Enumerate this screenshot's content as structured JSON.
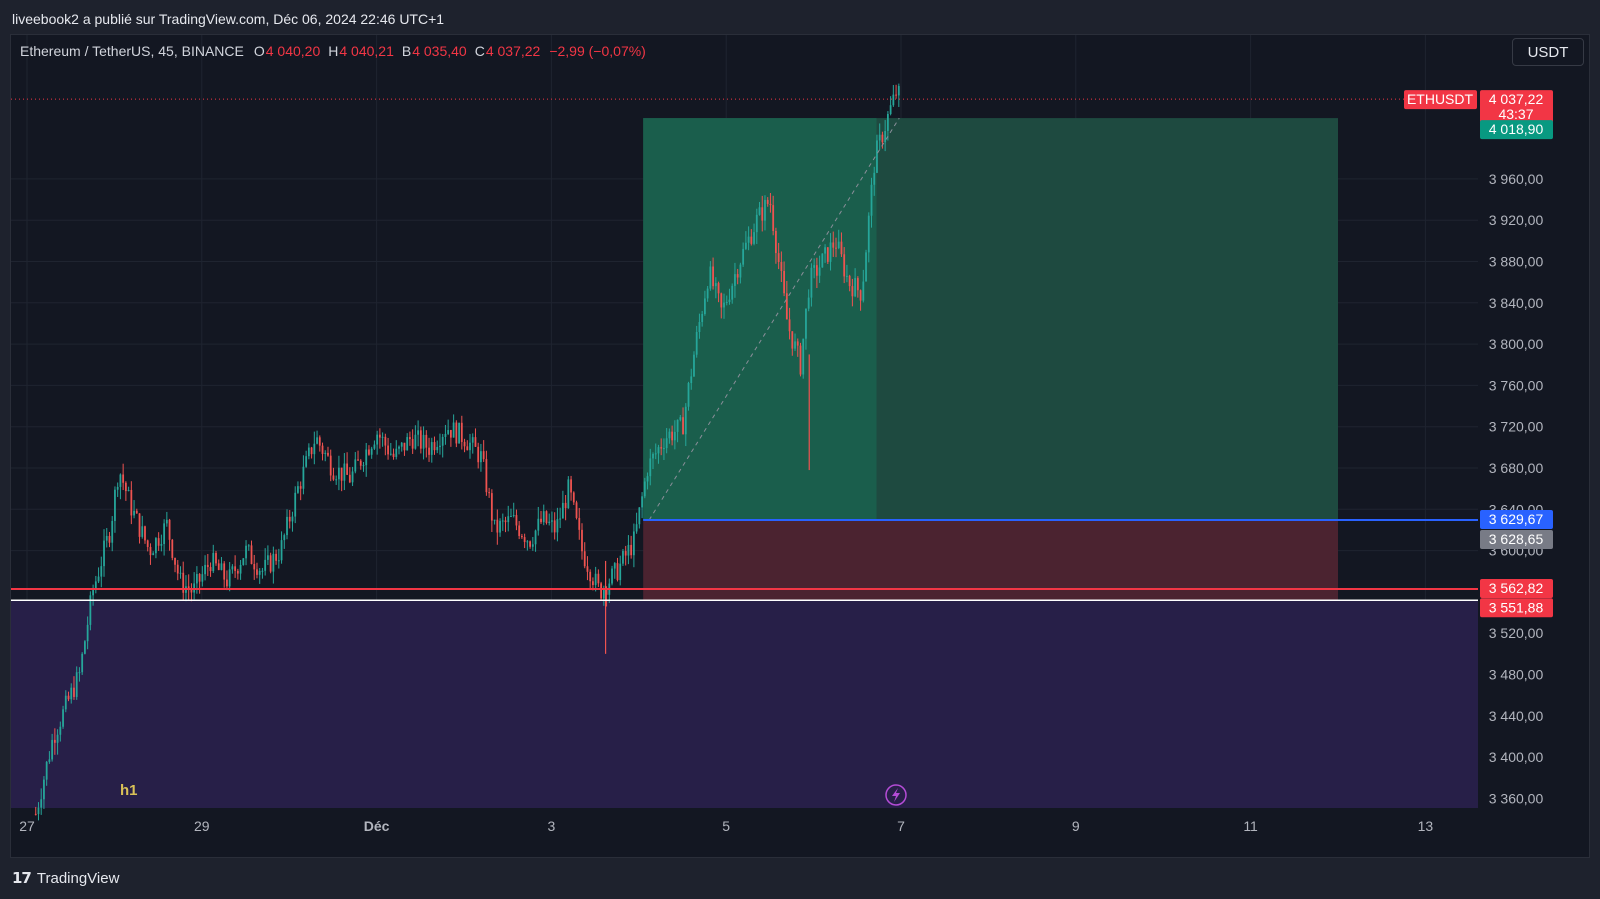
{
  "header": {
    "publish_text": "liveebook2 a publié sur TradingView.com, Déc 06, 2024 22:46 UTC+1"
  },
  "legend": {
    "symbol": "Ethereum / TetherUS, 45, BINANCE",
    "open_label": "O",
    "open": "4 040,20",
    "high_label": "H",
    "high": "4 040,21",
    "low_label": "B",
    "low": "4 035,40",
    "close_label": "C",
    "close": "4 037,22",
    "change": "−2,99 (−0,07%)"
  },
  "currency_button": "USDT",
  "footer": {
    "brand_logo": "17",
    "brand": "TradingView"
  },
  "annotations": {
    "h1_label": "h1",
    "lightning_icon": "lightning-icon"
  },
  "colors": {
    "up": "#26a69a",
    "down": "#ef5350",
    "profit_zone": "#1e4a40",
    "profit_zone_active": "#19634f",
    "loss_zone": "#4b2330",
    "purple_zone": "#271f48",
    "entry_line": "#2962ff",
    "stop_line": "#f23645",
    "support_line": "#ffffff"
  },
  "chart_data": {
    "type": "candlestick",
    "symbol": "ETHUSDT",
    "interval": "45",
    "exchange": "BINANCE",
    "y_range": [
      3340,
      4060
    ],
    "y_ticks": [
      "3 360,00",
      "3 400,00",
      "3 440,00",
      "3 480,00",
      "3 520,00",
      "3 600,00",
      "3 640,00",
      "3 680,00",
      "3 720,00",
      "3 760,00",
      "3 800,00",
      "3 840,00",
      "3 880,00",
      "3 920,00",
      "3 960,00"
    ],
    "y_tick_values": [
      3360,
      3400,
      3440,
      3480,
      3520,
      3600,
      3640,
      3680,
      3720,
      3760,
      3800,
      3840,
      3880,
      3920,
      3960
    ],
    "x_ticks": [
      {
        "label": "27",
        "day": 0
      },
      {
        "label": "29",
        "day": 2
      },
      {
        "label": "Déc",
        "day": 4
      },
      {
        "label": "3",
        "day": 6
      },
      {
        "label": "5",
        "day": 8
      },
      {
        "label": "7",
        "day": 10
      },
      {
        "label": "9",
        "day": 12
      },
      {
        "label": "11",
        "day": 14
      },
      {
        "label": "13",
        "day": 16
      }
    ],
    "price_path": [
      [
        0.1,
        3345
      ],
      [
        0.3,
        3420
      ],
      [
        0.6,
        3480
      ],
      [
        0.75,
        3560
      ],
      [
        0.95,
        3620
      ],
      [
        1.05,
        3680
      ],
      [
        1.2,
        3640
      ],
      [
        1.4,
        3600
      ],
      [
        1.6,
        3625
      ],
      [
        1.75,
        3570
      ],
      [
        1.9,
        3560
      ],
      [
        2.1,
        3590
      ],
      [
        2.3,
        3570
      ],
      [
        2.5,
        3600
      ],
      [
        2.7,
        3580
      ],
      [
        2.9,
        3600
      ],
      [
        3.1,
        3660
      ],
      [
        3.3,
        3710
      ],
      [
        3.5,
        3680
      ],
      [
        3.7,
        3670
      ],
      [
        3.9,
        3700
      ],
      [
        4.0,
        3715
      ],
      [
        4.2,
        3690
      ],
      [
        4.4,
        3710
      ],
      [
        4.6,
        3700
      ],
      [
        4.8,
        3720
      ],
      [
        5.0,
        3710
      ],
      [
        5.2,
        3690
      ],
      [
        5.35,
        3620
      ],
      [
        5.55,
        3630
      ],
      [
        5.75,
        3610
      ],
      [
        5.9,
        3630
      ],
      [
        6.05,
        3620
      ],
      [
        6.2,
        3660
      ],
      [
        6.35,
        3600
      ],
      [
        6.55,
        3560
      ],
      [
        6.75,
        3580
      ],
      [
        6.95,
        3610
      ],
      [
        7.1,
        3680
      ],
      [
        7.3,
        3710
      ],
      [
        7.5,
        3720
      ],
      [
        7.65,
        3800
      ],
      [
        7.8,
        3870
      ],
      [
        7.95,
        3830
      ],
      [
        8.15,
        3880
      ],
      [
        8.35,
        3920
      ],
      [
        8.5,
        3940
      ],
      [
        8.6,
        3880
      ],
      [
        8.7,
        3820
      ],
      [
        8.85,
        3780
      ],
      [
        8.95,
        3860
      ],
      [
        9.1,
        3880
      ],
      [
        9.25,
        3900
      ],
      [
        9.4,
        3860
      ],
      [
        9.55,
        3850
      ],
      [
        9.7,
        3980
      ],
      [
        9.85,
        4020
      ],
      [
        9.95,
        4045
      ],
      [
        10.0,
        4037
      ]
    ],
    "price_extremes": {
      "low_wick": [
        6.62,
        3500
      ],
      "spike_low": [
        8.95,
        3678
      ]
    },
    "levels": [
      {
        "name": "current_price",
        "value": 4037.22,
        "label": "4 037,22",
        "countdown": "43:37",
        "tag": "ETHUSDT"
      },
      {
        "name": "take_profit",
        "value": 4018.9,
        "label": "4 018,90"
      },
      {
        "name": "entry",
        "value": 3629.67,
        "label": "3 629,67"
      },
      {
        "name": "entry_alt",
        "value": 3628.65,
        "label": "3 628,65"
      },
      {
        "name": "stop",
        "value": 3562.82,
        "label": "3 562,82"
      },
      {
        "name": "support",
        "value": 3551.88,
        "label": "3 551,88"
      }
    ],
    "position": {
      "type": "long",
      "start_day": 7.05,
      "end_day": 15.0,
      "active_end_day": 9.72,
      "entry": 3629.67,
      "target": 4018.9,
      "stop": 3551.88
    },
    "purple_zone": {
      "from": 3551.88,
      "to": 3340
    }
  }
}
